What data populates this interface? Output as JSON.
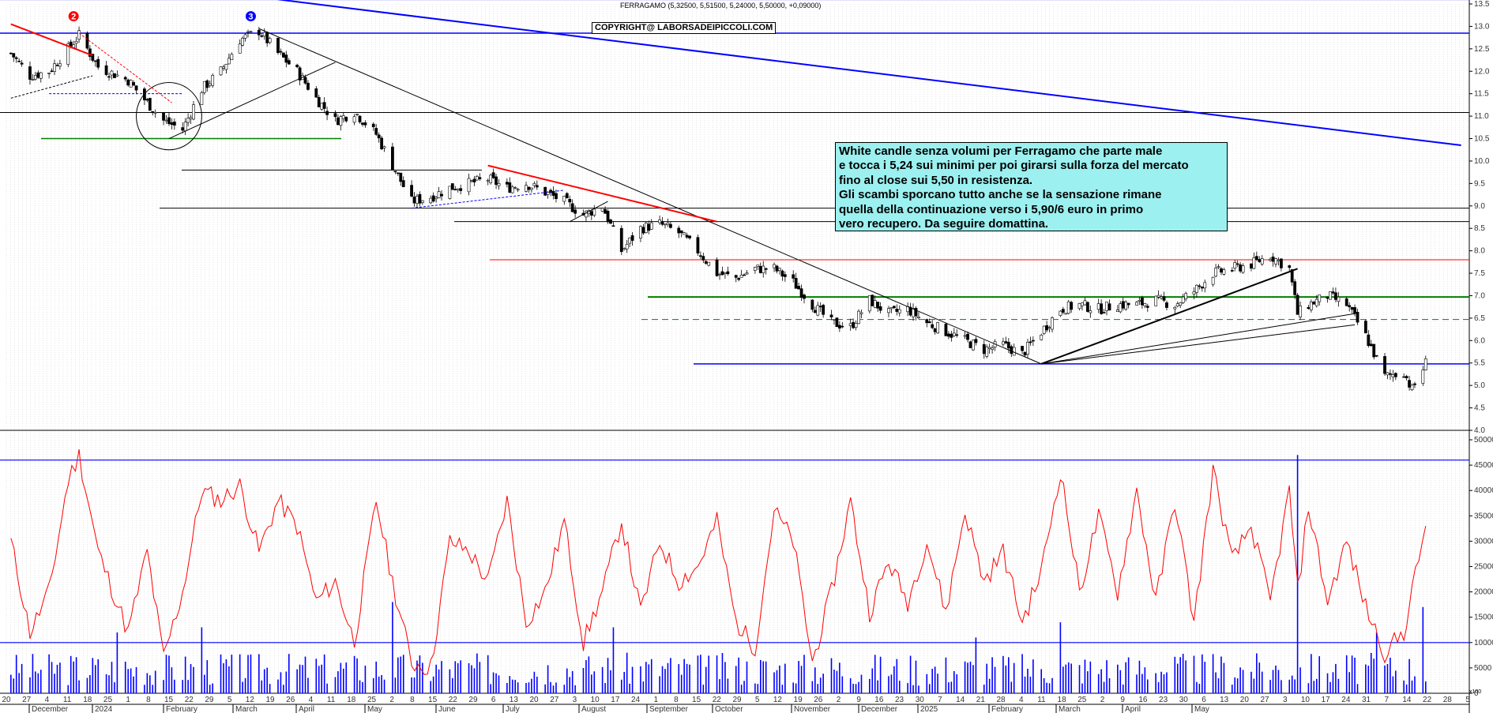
{
  "header": {
    "ticker": "FERRAGAMO (5,32500, 5,51500, 5,24000, 5,50000, +0,09000)",
    "copyright": "COPYRIGHT@ LABORSADEIPICCOLI.COM"
  },
  "comment_lines": [
    "White candle senza volumi per Ferragamo che parte male",
    "e tocca i 5,24 sui minimi per poi girarsi sulla forza del mercato",
    "fino al close sui 5,50 in resistenza.",
    "Gli scambi sporcano tutto anche se la sensazione rimane",
    "quella della continuazione verso i 5,90/6 euro in primo",
    "vero recupero. Da seguire domattina."
  ],
  "markers": [
    {
      "label": "2",
      "x": "2023-12-13",
      "y": 13.05,
      "color": "#ff0000"
    },
    {
      "label": "3",
      "x": "2024-02-16",
      "y": 13.05,
      "color": "#0000ff"
    }
  ],
  "colors": {
    "candle_up": "#ffffff",
    "candle_down": "#000000",
    "volume": "#0000ff",
    "volume_avg": "#ff0000",
    "background": "#ffffff"
  },
  "volume_corner_label": "x100",
  "chart_data": [
    {
      "type": "candlestick",
      "title": "FERRAGAMO (5,32500, 5,51500, 5,24000, 5,50000, +0,09000)",
      "ylim": [
        4.0,
        13.5
      ],
      "y_ticks": [
        "4.0",
        "4.5",
        "5.0",
        "5.5",
        "6.0",
        "6.5",
        "7.0",
        "7.5",
        "8.0",
        "8.5",
        "9.0",
        "9.5",
        "10.0",
        "10.5",
        "11.0",
        "11.5",
        "12.0",
        "12.5",
        "13.0",
        "13.5"
      ],
      "last_bar": {
        "open": 5.325,
        "high": 5.515,
        "low": 5.24,
        "close": 5.5,
        "change": 0.09
      },
      "x_day_ticks": [
        "20",
        "27",
        "4",
        "11",
        "18",
        "25",
        "1",
        "8",
        "15",
        "22",
        "29",
        "5",
        "12",
        "19",
        "26",
        "4",
        "11",
        "18",
        "25",
        "2",
        "8",
        "15",
        "22",
        "29",
        "6",
        "13",
        "20",
        "27",
        "3",
        "10",
        "17",
        "24",
        "1",
        "8",
        "15",
        "22",
        "29",
        "5",
        "12",
        "19",
        "26",
        "2",
        "9",
        "16",
        "23",
        "30",
        "7",
        "14",
        "21",
        "28",
        "4",
        "11",
        "18",
        "25",
        "2",
        "9",
        "16",
        "23",
        "30",
        "6",
        "13",
        "20",
        "27",
        "3",
        "10",
        "17",
        "24",
        "31",
        "7",
        "14",
        "22",
        "28",
        "5"
      ],
      "x_month_labels": [
        "December",
        "2024",
        "February",
        "March",
        "April",
        "May",
        "June",
        "July",
        "August",
        "September",
        "October",
        "November",
        "December",
        "2025",
        "February",
        "March",
        "April",
        "May"
      ],
      "horizontal_levels": [
        13.6,
        12.85,
        11.08,
        10.5,
        9.8,
        8.95,
        8.65,
        7.8,
        6.97,
        6.47,
        5.48
      ],
      "close_path": [
        [
          "2023-11-20",
          12.4
        ],
        [
          "2023-11-27",
          11.9
        ],
        [
          "2023-12-04",
          12.0
        ],
        [
          "2023-12-11",
          12.5
        ],
        [
          "2023-12-15",
          12.8
        ],
        [
          "2023-12-22",
          12.1
        ],
        [
          "2024-01-02",
          11.8
        ],
        [
          "2024-01-09",
          11.3
        ],
        [
          "2024-01-15",
          10.9
        ],
        [
          "2024-01-22",
          10.7
        ],
        [
          "2024-01-29",
          11.6
        ],
        [
          "2024-02-05",
          12.0
        ],
        [
          "2024-02-12",
          12.7
        ],
        [
          "2024-02-19",
          12.9
        ],
        [
          "2024-02-26",
          12.4
        ],
        [
          "2024-03-04",
          12.0
        ],
        [
          "2024-03-11",
          11.4
        ],
        [
          "2024-03-18",
          10.9
        ],
        [
          "2024-03-25",
          11.1
        ],
        [
          "2024-04-02",
          10.6
        ],
        [
          "2024-04-08",
          9.9
        ],
        [
          "2024-04-15",
          9.1
        ],
        [
          "2024-04-22",
          9.2
        ],
        [
          "2024-04-29",
          9.4
        ],
        [
          "2024-05-06",
          9.5
        ],
        [
          "2024-05-13",
          9.6
        ],
        [
          "2024-05-20",
          9.4
        ],
        [
          "2024-05-27",
          9.5
        ],
        [
          "2024-06-03",
          9.3
        ],
        [
          "2024-06-10",
          9.1
        ],
        [
          "2024-06-17",
          8.8
        ],
        [
          "2024-06-24",
          9.0
        ],
        [
          "2024-07-01",
          8.0
        ],
        [
          "2024-07-08",
          8.5
        ],
        [
          "2024-07-15",
          8.6
        ],
        [
          "2024-07-22",
          8.4
        ],
        [
          "2024-07-29",
          8.0
        ],
        [
          "2024-08-05",
          7.5
        ],
        [
          "2024-08-12",
          7.4
        ],
        [
          "2024-08-19",
          7.6
        ],
        [
          "2024-08-26",
          7.6
        ],
        [
          "2024-09-02",
          7.3
        ],
        [
          "2024-09-09",
          6.8
        ],
        [
          "2024-09-16",
          6.4
        ],
        [
          "2024-09-23",
          6.3
        ],
        [
          "2024-09-30",
          6.9
        ],
        [
          "2024-10-07",
          6.6
        ],
        [
          "2024-10-14",
          6.7
        ],
        [
          "2024-10-21",
          6.4
        ],
        [
          "2024-10-28",
          6.2
        ],
        [
          "2024-11-04",
          6.0
        ],
        [
          "2024-11-11",
          5.8
        ],
        [
          "2024-11-18",
          5.9
        ],
        [
          "2024-11-25",
          5.7
        ],
        [
          "2024-12-02",
          6.2
        ],
        [
          "2024-12-09",
          6.7
        ],
        [
          "2024-12-16",
          6.8
        ],
        [
          "2024-12-23",
          6.7
        ],
        [
          "2024-12-30",
          6.8
        ],
        [
          "2025-01-06",
          6.8
        ],
        [
          "2025-01-13",
          6.9
        ],
        [
          "2025-01-20",
          6.8
        ],
        [
          "2025-01-27",
          7.1
        ],
        [
          "2025-02-03",
          7.5
        ],
        [
          "2025-02-10",
          7.6
        ],
        [
          "2025-02-17",
          7.7
        ],
        [
          "2025-02-24",
          7.9
        ],
        [
          "2025-03-03",
          7.6
        ],
        [
          "2025-03-06",
          6.6
        ],
        [
          "2025-03-10",
          6.8
        ],
        [
          "2025-03-17",
          7.0
        ],
        [
          "2025-03-24",
          6.8
        ],
        [
          "2025-03-31",
          6.1
        ],
        [
          "2025-04-07",
          5.2
        ],
        [
          "2025-04-14",
          5.3
        ],
        [
          "2025-04-17",
          4.9
        ],
        [
          "2025-04-22",
          5.5
        ]
      ],
      "trend_lines": [
        {
          "from": [
            "2023-11-20",
            13.05
          ],
          "to": [
            "2023-12-20",
            12.35
          ],
          "color": "#ff0000",
          "width": 2
        },
        {
          "from": [
            "2023-12-15",
            12.85
          ],
          "to": [
            "2024-01-18",
            11.3
          ],
          "color": "#ff0000",
          "dash": true,
          "width": 1
        },
        {
          "from": [
            "2023-11-20",
            11.4
          ],
          "to": [
            "2023-12-20",
            11.9
          ],
          "color": "#000000",
          "dash": true,
          "width": 1
        },
        {
          "from": [
            "2023-12-04",
            11.5
          ],
          "to": [
            "2024-01-22",
            11.5
          ],
          "color": "#0000ff",
          "dash": true,
          "width": 1
        },
        {
          "from": [
            "2024-01-17",
            10.5
          ],
          "to": [
            "2024-03-18",
            12.2
          ],
          "color": "#000000",
          "width": 1
        },
        {
          "from": [
            "2024-02-19",
            12.95
          ],
          "to": [
            "2024-12-02",
            5.48
          ],
          "color": "#000000",
          "width": 1
        },
        {
          "from": [
            "2024-05-13",
            9.9
          ],
          "to": [
            "2024-08-05",
            8.65
          ],
          "color": "#ff0000",
          "width": 2
        },
        {
          "from": [
            "2024-04-15",
            8.95
          ],
          "to": [
            "2024-06-10",
            9.35
          ],
          "color": "#0000ff",
          "dash": true,
          "width": 1
        },
        {
          "from": [
            "2024-06-12",
            8.65
          ],
          "to": [
            "2024-06-26",
            9.1
          ],
          "color": "#000000",
          "width": 1
        },
        {
          "from": [
            "2024-12-02",
            5.48
          ],
          "to": [
            "2025-03-06",
            7.6
          ],
          "color": "#000000",
          "width": 2
        },
        {
          "from": [
            "2024-12-02",
            5.48
          ],
          "to": [
            "2025-03-27",
            6.6
          ],
          "color": "#000000",
          "width": 1
        },
        {
          "from": [
            "2024-12-02",
            5.48
          ],
          "to": [
            "2025-03-27",
            6.35
          ],
          "color": "#000000",
          "width": 1
        },
        {
          "from": [
            "2024-02-26",
            13.6
          ],
          "to": [
            "2025-05-05",
            10.35
          ],
          "color": "#0000ff",
          "width": 2
        }
      ],
      "ellipse": {
        "center": [
          "2024-01-17",
          11.0
        ],
        "rx_days": 12,
        "ry_price": 0.75
      }
    },
    {
      "type": "bar+line",
      "ylim": [
        0,
        50000
      ],
      "y_ticks": [
        "0",
        "5000",
        "10000",
        "15000",
        "20000",
        "25000",
        "30000",
        "35000",
        "40000",
        "45000",
        "50000"
      ],
      "horizontal_levels": [
        10000,
        46000
      ],
      "volume_avg_path": [
        [
          "2023-11-20",
          30000
        ],
        [
          "2023-11-27",
          12000
        ],
        [
          "2023-12-04",
          20000
        ],
        [
          "2023-12-11",
          42000
        ],
        [
          "2023-12-15",
          47000
        ],
        [
          "2023-12-22",
          28000
        ],
        [
          "2024-01-02",
          12000
        ],
        [
          "2024-01-09",
          28000
        ],
        [
          "2024-01-15",
          7000
        ],
        [
          "2024-01-22",
          20000
        ],
        [
          "2024-01-29",
          40000
        ],
        [
          "2024-02-05",
          38000
        ],
        [
          "2024-02-12",
          41000
        ],
        [
          "2024-02-19",
          28000
        ],
        [
          "2024-02-26",
          38000
        ],
        [
          "2024-03-04",
          33000
        ],
        [
          "2024-03-11",
          18000
        ],
        [
          "2024-03-18",
          22000
        ],
        [
          "2024-03-25",
          10000
        ],
        [
          "2024-04-02",
          38000
        ],
        [
          "2024-04-08",
          22000
        ],
        [
          "2024-04-15",
          6000
        ],
        [
          "2024-04-22",
          5000
        ],
        [
          "2024-04-29",
          30000
        ],
        [
          "2024-05-06",
          28000
        ],
        [
          "2024-05-13",
          22000
        ],
        [
          "2024-05-20",
          38000
        ],
        [
          "2024-05-27",
          14000
        ],
        [
          "2024-06-03",
          20000
        ],
        [
          "2024-06-10",
          34000
        ],
        [
          "2024-06-17",
          10000
        ],
        [
          "2024-06-24",
          20000
        ],
        [
          "2024-07-01",
          34000
        ],
        [
          "2024-07-08",
          16000
        ],
        [
          "2024-07-15",
          30000
        ],
        [
          "2024-07-22",
          22000
        ],
        [
          "2024-07-29",
          25000
        ],
        [
          "2024-08-05",
          34000
        ],
        [
          "2024-08-12",
          14000
        ],
        [
          "2024-08-19",
          9000
        ],
        [
          "2024-08-26",
          36000
        ],
        [
          "2024-09-02",
          30000
        ],
        [
          "2024-09-09",
          6000
        ],
        [
          "2024-09-16",
          20000
        ],
        [
          "2024-09-23",
          38000
        ],
        [
          "2024-09-30",
          16000
        ],
        [
          "2024-10-07",
          26000
        ],
        [
          "2024-10-14",
          18000
        ],
        [
          "2024-10-21",
          30000
        ],
        [
          "2024-10-28",
          16000
        ],
        [
          "2024-11-04",
          36000
        ],
        [
          "2024-11-11",
          22000
        ],
        [
          "2024-11-18",
          28000
        ],
        [
          "2024-11-25",
          14000
        ],
        [
          "2024-12-02",
          24000
        ],
        [
          "2024-12-09",
          44000
        ],
        [
          "2024-12-16",
          20000
        ],
        [
          "2024-12-23",
          35000
        ],
        [
          "2024-12-30",
          20000
        ],
        [
          "2025-01-06",
          40000
        ],
        [
          "2025-01-13",
          18000
        ],
        [
          "2025-01-20",
          38000
        ],
        [
          "2025-01-27",
          14000
        ],
        [
          "2025-02-03",
          44000
        ],
        [
          "2025-02-10",
          26000
        ],
        [
          "2025-02-17",
          33000
        ],
        [
          "2025-02-24",
          18000
        ],
        [
          "2025-03-03",
          40000
        ],
        [
          "2025-03-06",
          20000
        ],
        [
          "2025-03-10",
          37000
        ],
        [
          "2025-03-17",
          18000
        ],
        [
          "2025-03-24",
          30000
        ],
        [
          "2025-03-31",
          17000
        ],
        [
          "2025-04-07",
          8000
        ],
        [
          "2025-04-14",
          12000
        ],
        [
          "2025-04-17",
          20000
        ],
        [
          "2025-04-22",
          33000
        ]
      ],
      "volume_spikes": [
        [
          "2023-12-29",
          12000
        ],
        [
          "2024-01-29",
          13000
        ],
        [
          "2024-04-08",
          18000
        ],
        [
          "2024-06-28",
          13000
        ],
        [
          "2024-11-08",
          11000
        ],
        [
          "2024-12-09",
          14000
        ],
        [
          "2025-03-06",
          47000
        ],
        [
          "2025-04-04",
          12000
        ],
        [
          "2025-04-21",
          17000
        ]
      ]
    }
  ]
}
